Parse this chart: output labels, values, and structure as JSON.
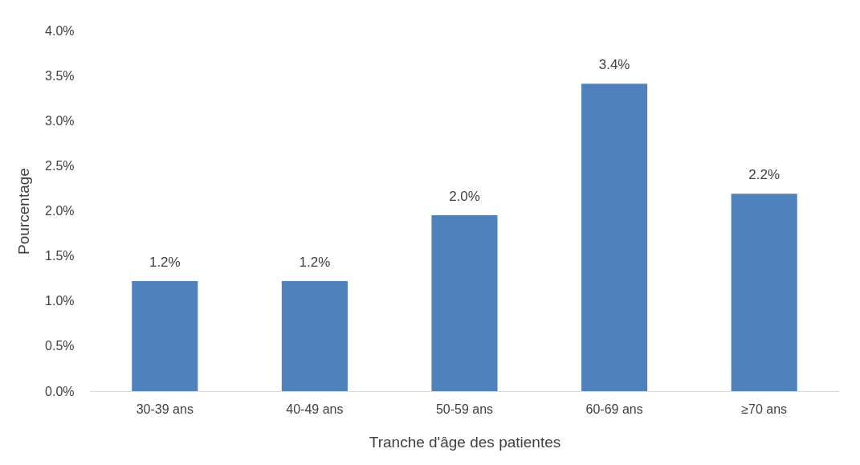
{
  "chart_data": {
    "type": "bar",
    "xlabel": "Tranche d'âge des patientes",
    "ylabel": "Pourcentage",
    "categories": [
      "30-39 ans",
      "40-49 ans",
      "50-59 ans",
      "60-69 ans",
      "≥70 ans"
    ],
    "values": [
      1.22,
      1.22,
      1.95,
      3.41,
      2.19
    ],
    "value_labels": [
      "1.2%",
      "1.2%",
      "2.0%",
      "3.4%",
      "2.2%"
    ],
    "color": "#4f81bd",
    "ylim": [
      0,
      4
    ],
    "yticks": [
      {
        "value": 0,
        "label": "0.0%"
      },
      {
        "value": 0.5,
        "label": "0.5%"
      },
      {
        "value": 1,
        "label": "1.0%"
      },
      {
        "value": 1.5,
        "label": "1.5%"
      },
      {
        "value": 2,
        "label": "2.0%"
      },
      {
        "value": 2.5,
        "label": "2.5%"
      },
      {
        "value": 3,
        "label": "3.0%"
      },
      {
        "value": 3.5,
        "label": "3.5%"
      },
      {
        "value": 4,
        "label": "4.0%"
      }
    ],
    "grid": false
  }
}
